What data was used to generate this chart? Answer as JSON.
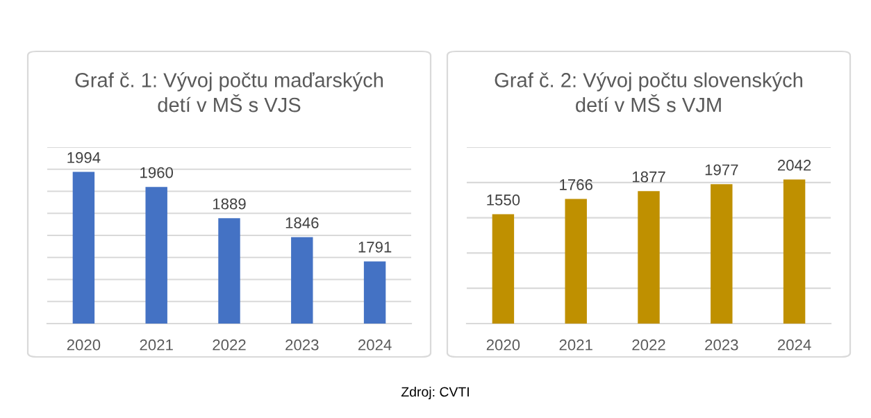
{
  "chart_data": [
    {
      "type": "bar",
      "title": "Graf č. 1: Vývoj počtu maďarských\ndetí v MŠ s VJS",
      "categories": [
        "2020",
        "2021",
        "2022",
        "2023",
        "2024"
      ],
      "values": [
        1994,
        1960,
        1889,
        1846,
        1791
      ],
      "color": "#4472c4",
      "data_labels": true,
      "ylim": [
        1650,
        2050
      ],
      "yticks": [
        {
          "value": 1650,
          "label": null
        },
        {
          "value": 1700,
          "label": null
        },
        {
          "value": 1750,
          "label": null
        },
        {
          "value": 1800,
          "label": null
        },
        {
          "value": 1850,
          "label": null
        },
        {
          "value": 1900,
          "label": null
        },
        {
          "value": 1950,
          "label": null
        },
        {
          "value": 2000,
          "label": null
        },
        {
          "value": 2050,
          "label": null
        }
      ],
      "grid": "y",
      "tick_labels": "x",
      "annotations": [
        "Zdroj: CVTI"
      ]
    },
    {
      "type": "bar",
      "title": "Graf č. 2: Vývoj počtu slovenských\ndetí v MŠ s VJM",
      "categories": [
        "2020",
        "2021",
        "2022",
        "2023",
        "2024"
      ],
      "values": [
        1550,
        1766,
        1877,
        1977,
        2042
      ],
      "color": "#bf9000",
      "data_labels": true,
      "ylim": [
        0,
        2500
      ],
      "yticks": [
        {
          "value": 0,
          "label": null
        },
        {
          "value": 500,
          "label": null
        },
        {
          "value": 1000,
          "label": null
        },
        {
          "value": 1500,
          "label": null
        },
        {
          "value": 2000,
          "label": null
        },
        {
          "value": 2500,
          "label": null
        }
      ],
      "grid": "y",
      "tick_labels": "x"
    }
  ]
}
